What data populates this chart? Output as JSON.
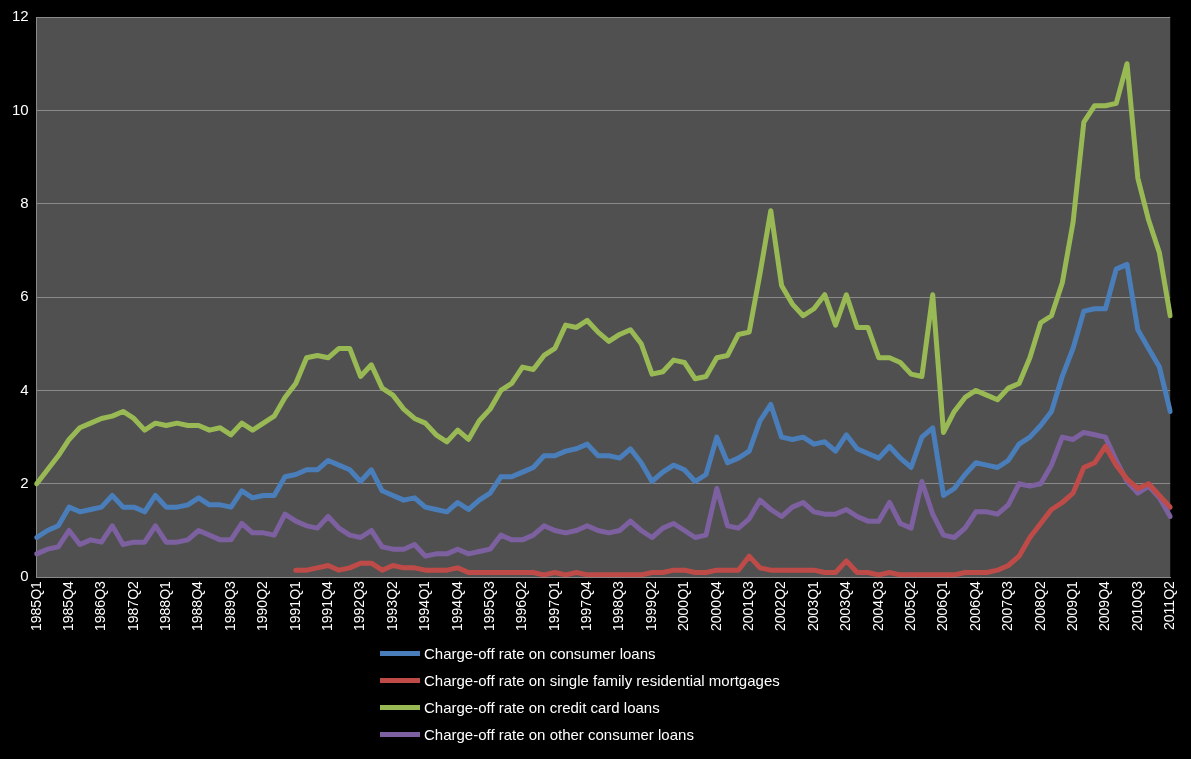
{
  "chart_data": {
    "type": "line",
    "categories": [
      "1985Q1",
      null,
      null,
      "1985Q4",
      null,
      null,
      "1986Q3",
      null,
      null,
      "1987Q2",
      null,
      null,
      "1988Q1",
      null,
      null,
      "1988Q4",
      null,
      null,
      "1989Q3",
      null,
      null,
      "1990Q2",
      null,
      null,
      "1991Q1",
      null,
      null,
      "1991Q4",
      null,
      null,
      "1992Q3",
      null,
      null,
      "1993Q2",
      null,
      null,
      "1994Q1",
      null,
      null,
      "1994Q4",
      null,
      null,
      "1995Q3",
      null,
      null,
      "1996Q2",
      null,
      null,
      "1997Q1",
      null,
      null,
      "1997Q4",
      null,
      null,
      "1998Q3",
      null,
      null,
      "1999Q2",
      null,
      null,
      "2000Q1",
      null,
      null,
      "2000Q4",
      null,
      null,
      "2001Q3",
      null,
      null,
      "2002Q2",
      null,
      null,
      "2003Q1",
      null,
      null,
      "2003Q4",
      null,
      null,
      "2004Q3",
      null,
      null,
      "2005Q2",
      null,
      null,
      "2006Q1",
      null,
      null,
      "2006Q4",
      null,
      null,
      "2007Q3",
      null,
      null,
      "2008Q2",
      null,
      null,
      "2009Q1",
      null,
      null,
      "2009Q4",
      null,
      null,
      "2010Q3",
      null,
      null,
      "2011Q2"
    ],
    "series": [
      {
        "name": "Charge-off rate on consumer loans",
        "color": "#4a7ebb",
        "values": [
          0.85,
          1.0,
          1.1,
          1.5,
          1.4,
          1.45,
          1.5,
          1.75,
          1.5,
          1.5,
          1.4,
          1.75,
          1.5,
          1.5,
          1.55,
          1.7,
          1.55,
          1.55,
          1.5,
          1.85,
          1.7,
          1.75,
          1.75,
          2.15,
          2.2,
          2.3,
          2.3,
          2.5,
          2.4,
          2.3,
          2.05,
          2.3,
          1.85,
          1.75,
          1.65,
          1.7,
          1.5,
          1.45,
          1.4,
          1.6,
          1.45,
          1.65,
          1.8,
          2.15,
          2.15,
          2.25,
          2.35,
          2.6,
          2.6,
          2.7,
          2.75,
          2.85,
          2.6,
          2.6,
          2.55,
          2.75,
          2.45,
          2.05,
          2.25,
          2.4,
          2.3,
          2.05,
          2.2,
          3.0,
          2.45,
          2.55,
          2.7,
          3.35,
          3.7,
          3.0,
          2.95,
          3.0,
          2.85,
          2.9,
          2.7,
          3.05,
          2.75,
          2.65,
          2.55,
          2.8,
          2.55,
          2.35,
          3.0,
          3.2,
          1.75,
          1.9,
          2.2,
          2.45,
          2.4,
          2.35,
          2.5,
          2.85,
          3.0,
          3.25,
          3.55,
          4.3,
          4.9,
          5.7,
          5.75,
          5.75,
          6.6,
          6.7,
          5.3,
          4.9,
          4.5,
          3.55
        ]
      },
      {
        "name": "Charge-off rate on single family residential mortgages",
        "color": "#be4b48",
        "values": [
          null,
          null,
          null,
          null,
          null,
          null,
          null,
          null,
          null,
          null,
          null,
          null,
          null,
          null,
          null,
          null,
          null,
          null,
          null,
          null,
          null,
          null,
          null,
          null,
          0.15,
          0.15,
          0.2,
          0.25,
          0.15,
          0.2,
          0.3,
          0.3,
          0.15,
          0.25,
          0.2,
          0.2,
          0.15,
          0.15,
          0.15,
          0.2,
          0.1,
          0.1,
          0.1,
          0.1,
          0.1,
          0.1,
          0.1,
          0.05,
          0.1,
          0.05,
          0.1,
          0.05,
          0.05,
          0.05,
          0.05,
          0.05,
          0.05,
          0.1,
          0.1,
          0.15,
          0.15,
          0.1,
          0.1,
          0.15,
          0.15,
          0.15,
          0.45,
          0.2,
          0.15,
          0.15,
          0.15,
          0.15,
          0.15,
          0.1,
          0.1,
          0.35,
          0.1,
          0.1,
          0.05,
          0.1,
          0.05,
          0.05,
          0.05,
          0.05,
          0.05,
          0.05,
          0.1,
          0.1,
          0.1,
          0.15,
          0.25,
          0.45,
          0.85,
          1.15,
          1.45,
          1.6,
          1.8,
          2.35,
          2.45,
          2.8,
          2.4,
          2.1,
          1.9,
          2.0,
          1.75,
          1.5
        ]
      },
      {
        "name": "Charge-off rate on credit card loans",
        "color": "#98b954",
        "values": [
          2.0,
          2.3,
          2.6,
          2.95,
          3.2,
          3.3,
          3.4,
          3.45,
          3.55,
          3.4,
          3.15,
          3.3,
          3.25,
          3.3,
          3.25,
          3.25,
          3.15,
          3.2,
          3.05,
          3.3,
          3.15,
          3.3,
          3.45,
          3.85,
          4.15,
          4.7,
          4.75,
          4.7,
          4.9,
          4.9,
          4.3,
          4.55,
          4.05,
          3.9,
          3.6,
          3.4,
          3.3,
          3.05,
          2.9,
          3.15,
          2.95,
          3.35,
          3.6,
          4.0,
          4.15,
          4.5,
          4.45,
          4.75,
          4.9,
          5.4,
          5.35,
          5.5,
          5.25,
          5.05,
          5.2,
          5.3,
          5.0,
          4.35,
          4.4,
          4.65,
          4.6,
          4.25,
          4.3,
          4.7,
          4.75,
          5.2,
          5.25,
          6.5,
          7.85,
          6.25,
          5.85,
          5.6,
          5.75,
          6.05,
          5.4,
          6.05,
          5.35,
          5.35,
          4.7,
          4.7,
          4.6,
          4.35,
          4.3,
          6.05,
          3.1,
          3.55,
          3.85,
          4.0,
          3.9,
          3.8,
          4.05,
          4.15,
          4.7,
          5.45,
          5.6,
          6.3,
          7.6,
          9.75,
          10.1,
          10.1,
          10.15,
          11.0,
          8.55,
          7.65,
          6.95,
          5.6
        ]
      },
      {
        "name": "Charge-off rate on other consumer loans",
        "color": "#7d60a0",
        "values": [
          0.5,
          0.6,
          0.65,
          1.0,
          0.7,
          0.8,
          0.75,
          1.1,
          0.7,
          0.75,
          0.75,
          1.1,
          0.75,
          0.75,
          0.8,
          1.0,
          0.9,
          0.8,
          0.8,
          1.15,
          0.95,
          0.95,
          0.9,
          1.35,
          1.2,
          1.1,
          1.05,
          1.3,
          1.05,
          0.9,
          0.85,
          1.0,
          0.65,
          0.6,
          0.6,
          0.7,
          0.45,
          0.5,
          0.5,
          0.6,
          0.5,
          0.55,
          0.6,
          0.9,
          0.8,
          0.8,
          0.9,
          1.1,
          1.0,
          0.95,
          1.0,
          1.1,
          1.0,
          0.95,
          1.0,
          1.2,
          1.0,
          0.85,
          1.05,
          1.15,
          1.0,
          0.85,
          0.9,
          1.9,
          1.1,
          1.05,
          1.25,
          1.65,
          1.45,
          1.3,
          1.5,
          1.6,
          1.4,
          1.35,
          1.35,
          1.45,
          1.3,
          1.2,
          1.2,
          1.6,
          1.15,
          1.05,
          2.05,
          1.35,
          0.9,
          0.85,
          1.05,
          1.4,
          1.4,
          1.35,
          1.55,
          2.0,
          1.95,
          2.0,
          2.4,
          3.0,
          2.95,
          3.1,
          3.05,
          3.0,
          2.5,
          2.05,
          1.8,
          1.95,
          1.7,
          1.3
        ]
      }
    ],
    "ylim": [
      0,
      12
    ],
    "yticks": [
      0,
      2,
      4,
      6,
      8,
      10,
      12
    ],
    "grid": "y",
    "legend": "bottom",
    "marker": "none",
    "line_style": "solid"
  }
}
